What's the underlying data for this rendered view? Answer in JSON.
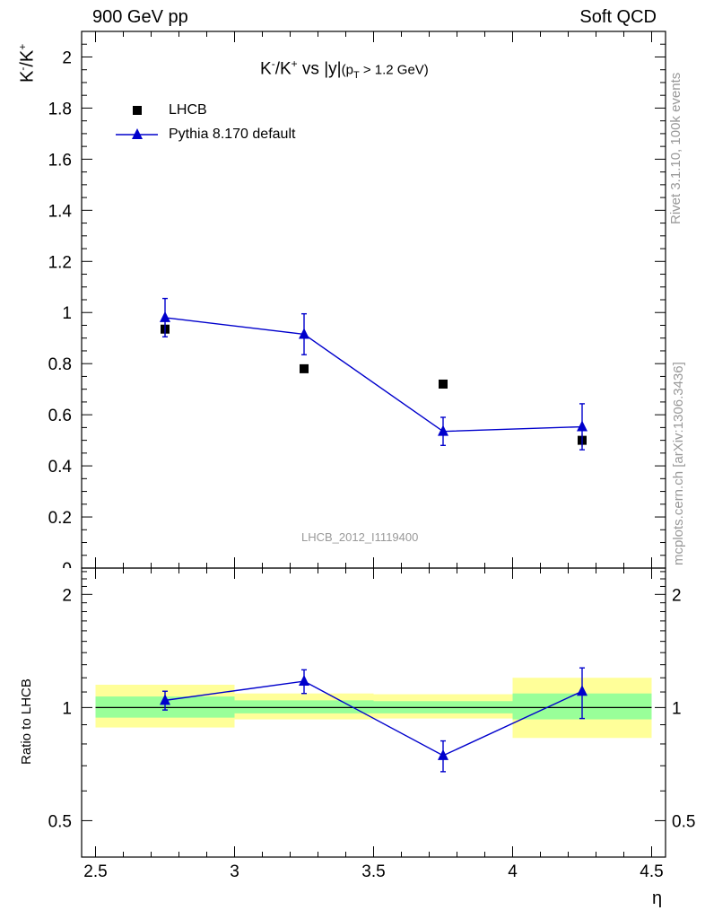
{
  "header": {
    "energy_label": "900 GeV pp",
    "process_label": "Soft QCD"
  },
  "side_text": {
    "version": "Rivet 3.1.10,  100k events",
    "source": "mcplots.cern.ch [arXiv:1306.3436]"
  },
  "chart_data": [
    {
      "type": "scatter",
      "title": {
        "main": "K",
        "sup1": "-",
        "mid": "/K",
        "sup2": "+",
        "tail": " vs |y|",
        "sub_open": "(p",
        "sub_T": "T",
        "sub_close": " > 1.2 GeV)"
      },
      "ylabel": {
        "a": "K",
        "sup1": "-",
        "b": "/K",
        "sup2": "+"
      },
      "analysis_label": "LHCB_2012_I1119400",
      "ylim": [
        0,
        2.1
      ],
      "y_ticks": [
        "0.2",
        "0.4",
        "0.6",
        "0.8",
        "1",
        "1.2",
        "1.4",
        "1.6",
        "1.8",
        "2"
      ],
      "legend": {
        "placement": "top-left",
        "entries": [
          "LHCB",
          "Pythia 8.170 default"
        ]
      },
      "colors": {
        "data": "#000000",
        "mc": "#0000cc"
      },
      "x_bins": [
        [
          2.5,
          3.0
        ],
        [
          3.0,
          3.5
        ],
        [
          3.5,
          4.0
        ],
        [
          4.0,
          4.5
        ]
      ],
      "series": [
        {
          "name": "LHCB",
          "x": [
            2.75,
            3.25,
            3.75,
            4.25
          ],
          "y": [
            0.935,
            0.78,
            0.72,
            0.5
          ],
          "yerr": [
            0.025,
            0.015,
            0.015,
            0.025
          ]
        },
        {
          "name": "Pythia 8.170 default",
          "x": [
            2.75,
            3.25,
            3.75,
            4.25
          ],
          "y": [
            0.98,
            0.915,
            0.535,
            0.553
          ],
          "yerr": [
            0.075,
            0.08,
            0.055,
            0.09
          ]
        }
      ]
    },
    {
      "type": "scatter",
      "ylabel": "Ratio to LHCB",
      "yscale": "log",
      "ylim": [
        0.4,
        2.35
      ],
      "y_ticks": [
        "0.5",
        "1",
        "2"
      ],
      "xlabel": "η",
      "x_ticks": [
        "2.5",
        "3",
        "3.5",
        "4",
        "4.5"
      ],
      "xlim": [
        2.45,
        4.55
      ],
      "colors": {
        "band_inner": "#99ff99",
        "band_outer": "#ffff99",
        "mc": "#0000cc"
      },
      "bands": [
        {
          "x": [
            2.5,
            3.0
          ],
          "inner": [
            0.94,
            1.07
          ],
          "outer": [
            0.885,
            1.15
          ]
        },
        {
          "x": [
            3.0,
            3.5
          ],
          "inner": [
            0.965,
            1.045
          ],
          "outer": [
            0.93,
            1.09
          ]
        },
        {
          "x": [
            3.5,
            4.0
          ],
          "inner": [
            0.965,
            1.04
          ],
          "outer": [
            0.935,
            1.085
          ]
        },
        {
          "x": [
            4.0,
            4.5
          ],
          "inner": [
            0.93,
            1.09
          ],
          "outer": [
            0.83,
            1.2
          ]
        }
      ],
      "series": [
        {
          "name": "Pythia 8.170 default",
          "x": [
            2.75,
            3.25,
            3.75,
            4.25
          ],
          "y": [
            1.045,
            1.175,
            0.745,
            1.105
          ],
          "yerr": [
            0.06,
            0.085,
            0.07,
            0.17
          ]
        }
      ]
    }
  ]
}
